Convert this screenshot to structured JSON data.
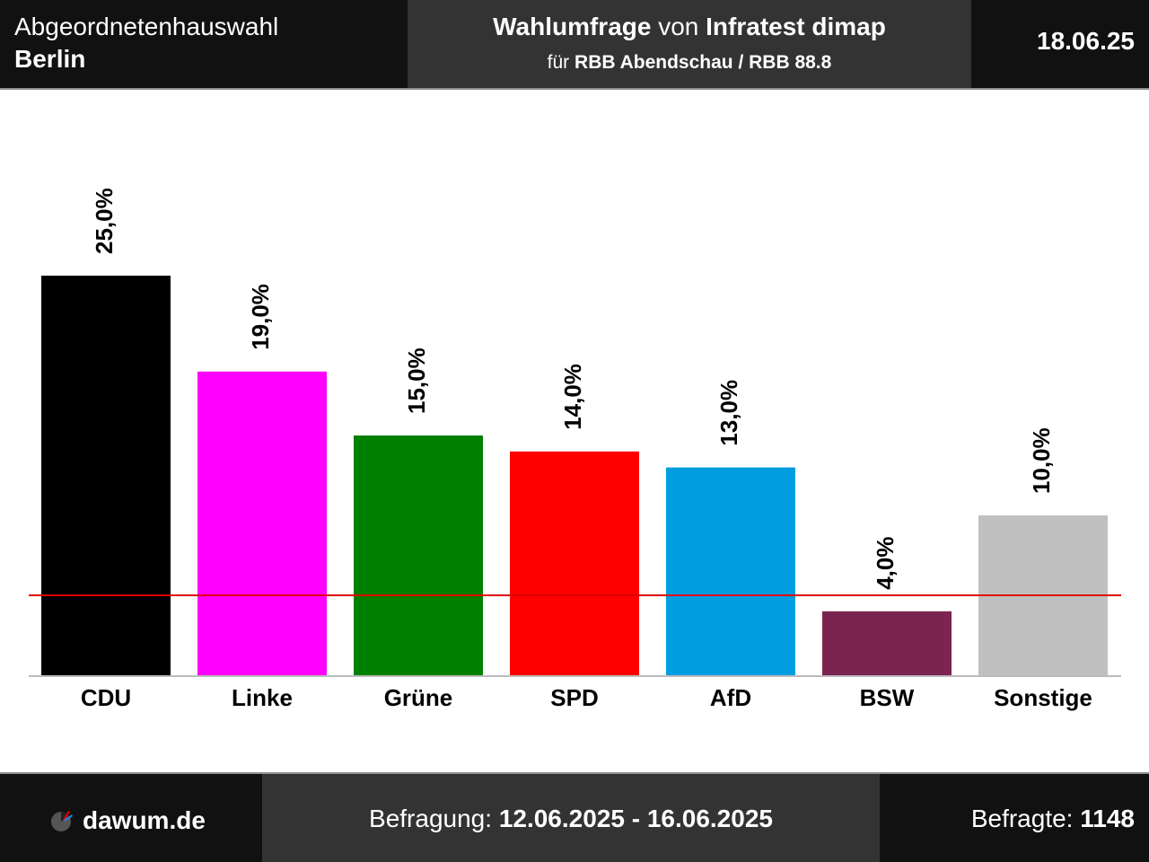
{
  "header": {
    "election": "Abgeordnetenhauswahl",
    "region": "Berlin",
    "poll_word": "Wahlumfrage",
    "von_word": "von",
    "institute": "Infratest dimap",
    "fuer_word": "für",
    "client": "RBB Abendschau / RBB 88.8",
    "date": "18.06.25"
  },
  "footer": {
    "brand": "dawum.de",
    "survey_label": "Befragung:",
    "survey_period": "12.06.2025 - 16.06.2025",
    "respondents_label": "Befragte:",
    "respondents": "1148"
  },
  "icons": {
    "logo": "dawum-pie-logo-icon"
  },
  "chart_data": {
    "type": "bar",
    "categories": [
      "CDU",
      "Linke",
      "Grüne",
      "SPD",
      "AfD",
      "BSW",
      "Sonstige"
    ],
    "values": [
      25.0,
      19.0,
      15.0,
      14.0,
      13.0,
      4.0,
      10.0
    ],
    "value_labels": [
      "25,0%",
      "19,0%",
      "15,0%",
      "14,0%",
      "13,0%",
      "4,0%",
      "10,0%"
    ],
    "colors": [
      "#000000",
      "#ff00ff",
      "#008000",
      "#ff0000",
      "#009ee0",
      "#7b2450",
      "#c0c0c0"
    ],
    "threshold": 5,
    "threshold_color": "#e00000",
    "ylim": [
      0,
      25
    ],
    "grid": false,
    "legend": false
  }
}
